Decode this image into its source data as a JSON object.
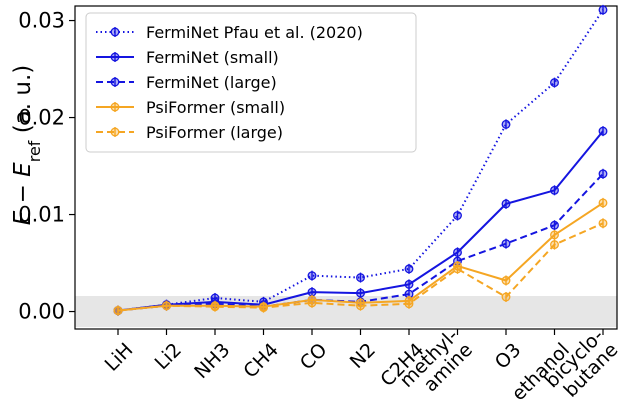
{
  "chart_data": {
    "type": "line",
    "ylabel": "E − E_ref (a. u.)",
    "ylabel_parts": {
      "e": "E",
      "minus": " − ",
      "e2": "E",
      "sub": "ref",
      "unit": " (a. u.)"
    },
    "xlabel": "",
    "ylim": [
      -0.0018,
      0.0315
    ],
    "yticks": [
      0.0,
      0.01,
      0.02,
      0.03
    ],
    "ytick_labels": [
      "0.00",
      "0.01",
      "0.02",
      "0.03"
    ],
    "categories": [
      "LiH",
      "Li2",
      "NH3",
      "CH4",
      "CO",
      "N2",
      "C2H4",
      "methyl-\namine",
      "O3",
      "ethanol",
      "bicyclo-\nbutane"
    ],
    "shaded_band": [
      -0.0016,
      0.0016
    ],
    "legend_position": "upper left",
    "series": [
      {
        "name": "FermiNet Pfau et al. (2020)",
        "color": "#1515e0",
        "linestyle": "dotted",
        "values": [
          0.0001,
          0.0007,
          0.0014,
          0.001,
          0.0037,
          0.0035,
          0.0044,
          0.0099,
          0.0193,
          0.0236,
          0.0311
        ]
      },
      {
        "name": "FermiNet (small)",
        "color": "#1515e0",
        "linestyle": "solid",
        "values": [
          0.0001,
          0.0007,
          0.001,
          0.0007,
          0.002,
          0.0019,
          0.0028,
          0.0061,
          0.0111,
          0.0125,
          0.0186
        ]
      },
      {
        "name": "FermiNet (large)",
        "color": "#1515e0",
        "linestyle": "dashed",
        "values": [
          0.0001,
          0.0006,
          0.0008,
          0.0005,
          0.0012,
          0.001,
          0.0018,
          0.0052,
          0.007,
          0.0089,
          0.0142
        ]
      },
      {
        "name": "PsiFormer (small)",
        "color": "#f5a623",
        "linestyle": "solid",
        "values": [
          0.0001,
          0.0006,
          0.0006,
          0.0005,
          0.0012,
          0.0009,
          0.0011,
          0.0047,
          0.0032,
          0.0079,
          0.0112
        ]
      },
      {
        "name": "PsiFormer (large)",
        "color": "#f5a623",
        "linestyle": "dashed",
        "values": [
          0.0001,
          0.0006,
          0.0005,
          0.0004,
          0.0009,
          0.0006,
          0.0008,
          0.0044,
          0.0015,
          0.0069,
          0.0091
        ]
      }
    ]
  }
}
